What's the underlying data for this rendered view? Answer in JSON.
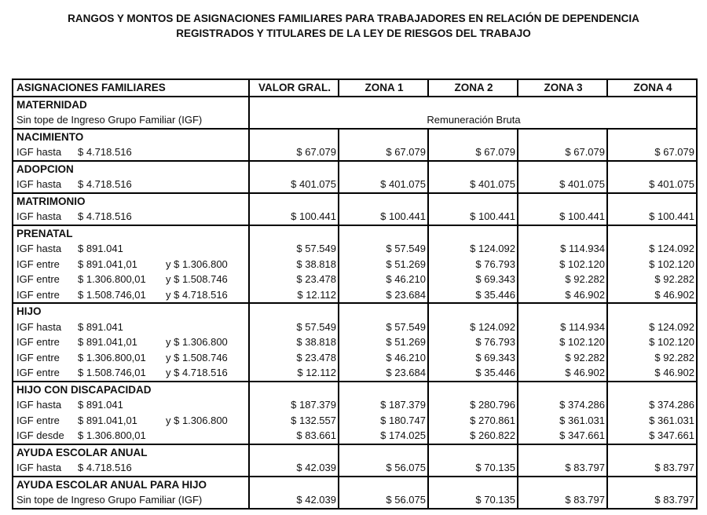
{
  "title_lines": [
    "RANGOS Y MONTOS DE ASIGNACIONES FAMILIARES PARA TRABAJADORES EN RELACIÓN DE DEPENDENCIA",
    "REGISTRADOS Y TITULARES DE LA LEY DE RIESGOS DEL TRABAJO"
  ],
  "headers": [
    "ASIGNACIONES FAMILIARES",
    "VALOR GRAL.",
    "ZONA 1",
    "ZONA 2",
    "ZONA 3",
    "ZONA 4"
  ],
  "maternidad": {
    "name": "MATERNIDAD",
    "note": "Sin tope de Ingreso Grupo Familiar (IGF)",
    "value": "Remuneración Bruta"
  },
  "sections": [
    {
      "name": "NACIMIENTO",
      "rows": [
        {
          "pre": "IGF hasta",
          "amt": "$ 4.718.516",
          "to": "",
          "values": [
            "$ 67.079",
            "$ 67.079",
            "$ 67.079",
            "$ 67.079",
            "$ 67.079"
          ]
        }
      ]
    },
    {
      "name": "ADOPCION",
      "rows": [
        {
          "pre": "IGF hasta",
          "amt": "$ 4.718.516",
          "to": "",
          "values": [
            "$ 401.075",
            "$ 401.075",
            "$ 401.075",
            "$ 401.075",
            "$ 401.075"
          ]
        }
      ]
    },
    {
      "name": "MATRIMONIO",
      "rows": [
        {
          "pre": "IGF hasta",
          "amt": "$ 4.718.516",
          "to": "",
          "values": [
            "$ 100.441",
            "$ 100.441",
            "$ 100.441",
            "$ 100.441",
            "$ 100.441"
          ]
        }
      ]
    },
    {
      "name": "PRENATAL",
      "rows": [
        {
          "pre": "IGF hasta",
          "amt": "$ 891.041",
          "to": "",
          "values": [
            "$ 57.549",
            "$ 57.549",
            "$ 124.092",
            "$ 114.934",
            "$ 124.092"
          ]
        },
        {
          "pre": "IGF entre",
          "amt": "$ 891.041,01",
          "to": "y $ 1.306.800",
          "values": [
            "$ 38.818",
            "$ 51.269",
            "$ 76.793",
            "$ 102.120",
            "$ 102.120"
          ]
        },
        {
          "pre": "IGF entre",
          "amt": "$ 1.306.800,01",
          "to": "y $ 1.508.746",
          "values": [
            "$ 23.478",
            "$ 46.210",
            "$ 69.343",
            "$ 92.282",
            "$ 92.282"
          ]
        },
        {
          "pre": "IGF entre",
          "amt": "$ 1.508.746,01",
          "to": "y $ 4.718.516",
          "values": [
            "$ 12.112",
            "$ 23.684",
            "$ 35.446",
            "$ 46.902",
            "$ 46.902"
          ]
        }
      ]
    },
    {
      "name": "HIJO",
      "rows": [
        {
          "pre": "IGF hasta",
          "amt": "$ 891.041",
          "to": "",
          "values": [
            "$ 57.549",
            "$ 57.549",
            "$ 124.092",
            "$ 114.934",
            "$ 124.092"
          ]
        },
        {
          "pre": "IGF entre",
          "amt": "$ 891.041,01",
          "to": "y $ 1.306.800",
          "values": [
            "$ 38.818",
            "$ 51.269",
            "$ 76.793",
            "$ 102.120",
            "$ 102.120"
          ]
        },
        {
          "pre": "IGF entre",
          "amt": "$ 1.306.800,01",
          "to": "y $ 1.508.746",
          "values": [
            "$ 23.478",
            "$ 46.210",
            "$ 69.343",
            "$ 92.282",
            "$ 92.282"
          ]
        },
        {
          "pre": "IGF entre",
          "amt": "$ 1.508.746,01",
          "to": "y $ 4.718.516",
          "values": [
            "$ 12.112",
            "$ 23.684",
            "$ 35.446",
            "$ 46.902",
            "$ 46.902"
          ]
        }
      ]
    },
    {
      "name": "HIJO CON DISCAPACIDAD",
      "rows": [
        {
          "pre": "IGF hasta",
          "amt": "$ 891.041",
          "to": "",
          "values": [
            "$ 187.379",
            "$ 187.379",
            "$ 280.796",
            "$ 374.286",
            "$ 374.286"
          ]
        },
        {
          "pre": "IGF entre",
          "amt": "$ 891.041,01",
          "to": "y $ 1.306.800",
          "values": [
            "$ 132.557",
            "$ 180.747",
            "$ 270.861",
            "$ 361.031",
            "$ 361.031"
          ]
        },
        {
          "pre": "IGF desde",
          "amt": "$ 1.306.800,01",
          "to": "",
          "values": [
            "$ 83.661",
            "$ 174.025",
            "$ 260.822",
            "$ 347.661",
            "$ 347.661"
          ]
        }
      ]
    },
    {
      "name": "AYUDA ESCOLAR ANUAL",
      "rows": [
        {
          "pre": "IGF hasta",
          "amt": "$ 4.718.516",
          "to": "",
          "values": [
            "$ 42.039",
            "$ 56.075",
            "$ 70.135",
            "$ 83.797",
            "$ 83.797"
          ]
        }
      ]
    },
    {
      "name": "AYUDA ESCOLAR ANUAL PARA HIJO",
      "rows": [
        {
          "full": "Sin tope de Ingreso Grupo Familiar (IGF)",
          "values": [
            "$ 42.039",
            "$ 56.075",
            "$ 70.135",
            "$ 83.797",
            "$ 83.797"
          ]
        }
      ]
    }
  ]
}
